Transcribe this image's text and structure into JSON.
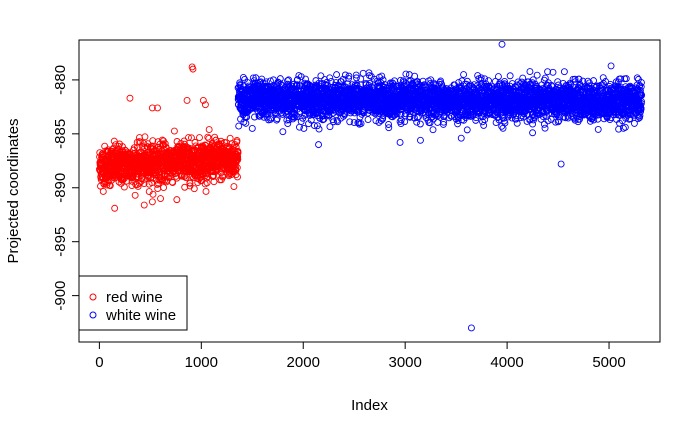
{
  "chart_data": {
    "type": "scatter",
    "title": "",
    "xlabel": "Index",
    "ylabel": "Projected coordinates",
    "xlim": [
      -200,
      5500
    ],
    "ylim": [
      -904.3,
      -876.3
    ],
    "xticks": [
      0,
      1000,
      2000,
      3000,
      4000,
      5000
    ],
    "yticks": [
      -900,
      -895,
      -890,
      -885,
      -880
    ],
    "xtick_labels": [
      "0",
      "1000",
      "2000",
      "3000",
      "4000",
      "5000"
    ],
    "ytick_labels": [
      "-900",
      "-895",
      "-890",
      "-885",
      "-880"
    ],
    "grid": false,
    "legend_position": "bottom-left",
    "series": [
      {
        "name": "red wine",
        "color": "#ff0000",
        "marker": "open-circle",
        "index_range": [
          1,
          1360
        ],
        "center_start": -888.0,
        "center_end": -887.3,
        "spread": 0.9,
        "outliers": [
          {
            "x": 910,
            "y": -878.8
          },
          {
            "x": 918,
            "y": -879.0
          },
          {
            "x": 300,
            "y": -881.7
          },
          {
            "x": 860,
            "y": -881.9
          },
          {
            "x": 1020,
            "y": -881.9
          },
          {
            "x": 1040,
            "y": -882.3
          },
          {
            "x": 520,
            "y": -882.6
          },
          {
            "x": 570,
            "y": -882.6
          },
          {
            "x": 150,
            "y": -891.9
          },
          {
            "x": 440,
            "y": -891.6
          },
          {
            "x": 520,
            "y": -891.3
          },
          {
            "x": 600,
            "y": -891.0
          },
          {
            "x": 760,
            "y": -891.1
          }
        ]
      },
      {
        "name": "white wine",
        "color": "#0000ff",
        "marker": "open-circle",
        "index_range": [
          1361,
          5320
        ],
        "center_start": -881.8,
        "center_end": -882.0,
        "spread": 0.85,
        "outliers": [
          {
            "x": 3950,
            "y": -876.7
          },
          {
            "x": 5020,
            "y": -878.7
          },
          {
            "x": 4450,
            "y": -879.3
          },
          {
            "x": 4530,
            "y": -887.8
          },
          {
            "x": 3650,
            "y": -903.0
          },
          {
            "x": 2150,
            "y": -886.0
          },
          {
            "x": 2950,
            "y": -885.8
          },
          {
            "x": 3150,
            "y": -885.6
          },
          {
            "x": 3550,
            "y": -885.4
          },
          {
            "x": 1500,
            "y": -884.5
          },
          {
            "x": 1800,
            "y": -884.8
          },
          {
            "x": 4250,
            "y": -884.9
          },
          {
            "x": 5160,
            "y": -884.4
          },
          {
            "x": 1980,
            "y": -879.7
          },
          {
            "x": 2650,
            "y": -879.6
          },
          {
            "x": 3780,
            "y": -879.9
          }
        ]
      }
    ]
  }
}
